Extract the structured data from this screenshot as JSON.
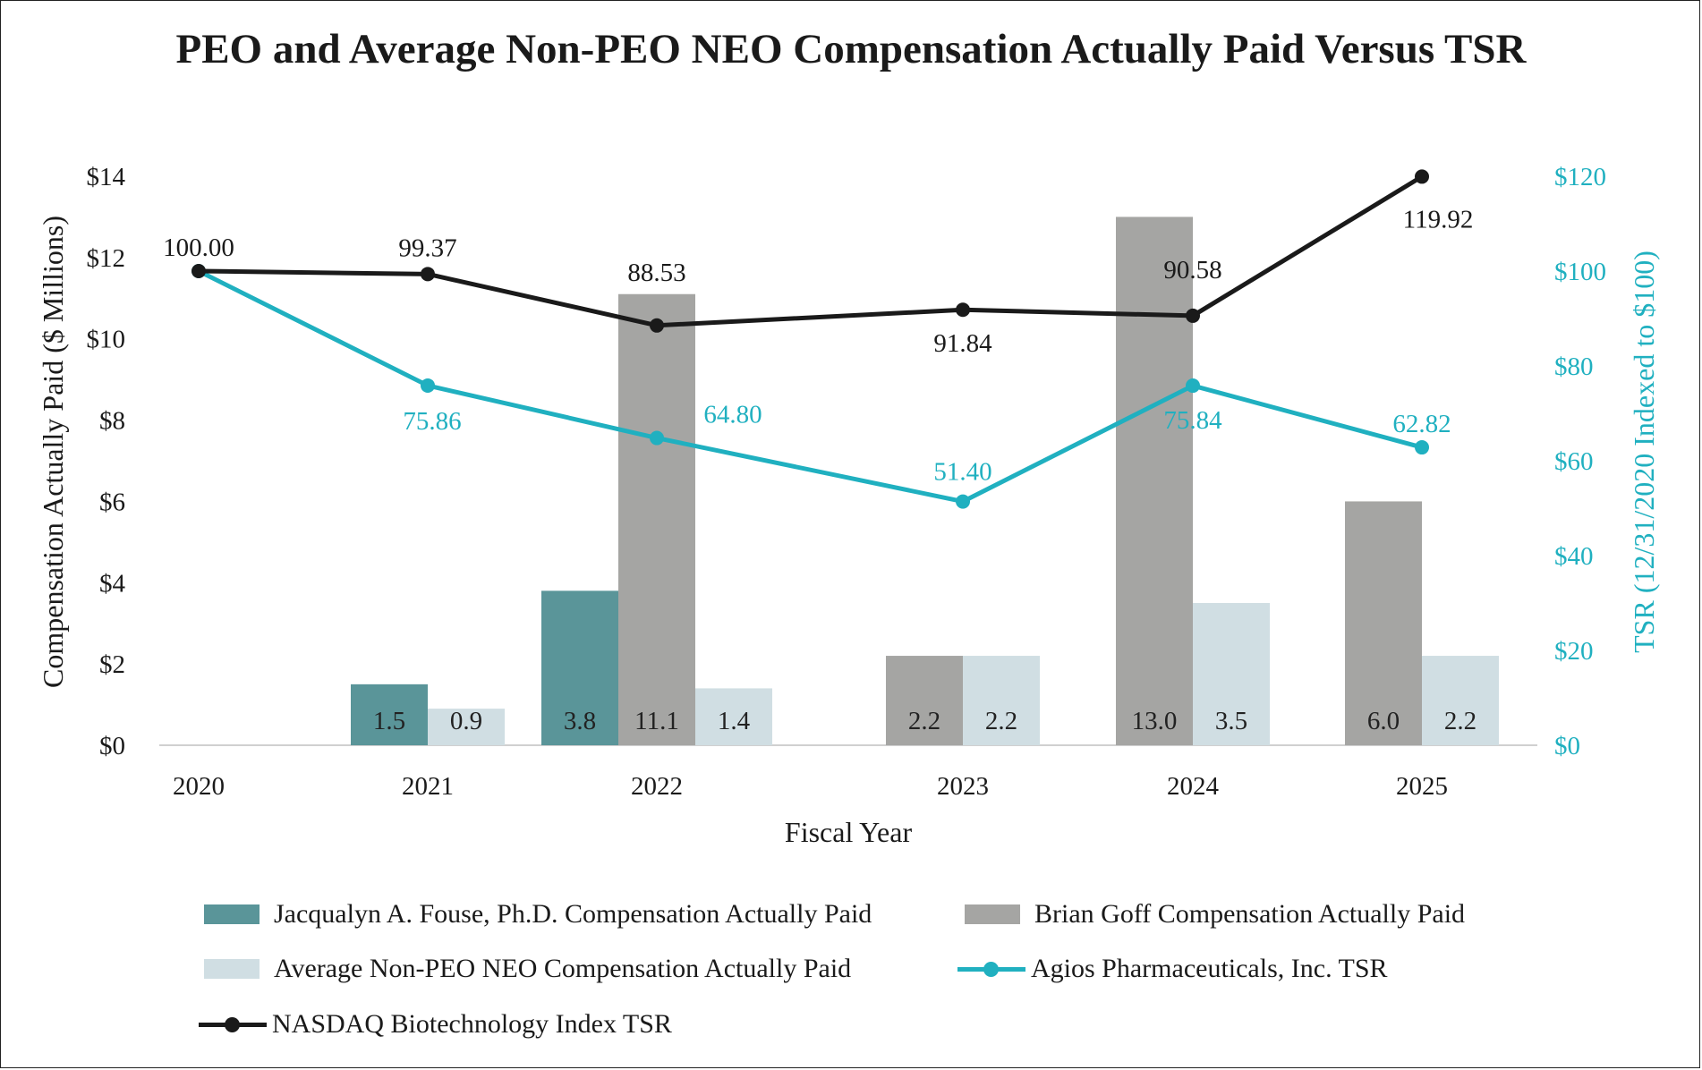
{
  "title": "PEO and Average Non-PEO NEO Compensation Actually Paid Versus TSR",
  "colors": {
    "fouse": "#5a9599",
    "goff": "#a5a5a3",
    "nonpeo": "#d0dee3",
    "agios": "#20b0c0",
    "nasdaq": "#1a1a1a",
    "right_axis": "#20b0c0"
  },
  "legend": {
    "fouse": "Jacqualyn A. Fouse, Ph.D. Compensation Actually Paid",
    "goff": "Brian Goff Compensation Actually Paid",
    "nonpeo": "Average Non-PEO NEO Compensation Actually Paid",
    "agios": "Agios Pharmaceuticals, Inc. TSR",
    "nasdaq": "NASDAQ Biotechnology Index TSR"
  },
  "chart_data": {
    "type": "bar-line-combo",
    "title": "PEO and Average Non-PEO NEO Compensation Actually Paid Versus TSR",
    "xlabel": "Fiscal Year",
    "ylabel": "Compensation Actually Paid ($ Millions)",
    "y2label": "TSR (12/31/2020 Indexed to $100)",
    "categories": [
      "2020",
      "2021",
      "2022",
      "2023",
      "2024",
      "2025"
    ],
    "ylim": [
      0,
      14
    ],
    "y_ticks": [
      0,
      2,
      4,
      6,
      8,
      10,
      12,
      14
    ],
    "y_tick_labels": [
      "$0",
      "$2",
      "$4",
      "$6",
      "$8",
      "$10",
      "$12",
      "$14"
    ],
    "y2lim": [
      0,
      120
    ],
    "y2_ticks": [
      0,
      20,
      40,
      60,
      80,
      100,
      120
    ],
    "y2_tick_labels": [
      "$0",
      "$20",
      "$40",
      "$60",
      "$80",
      "$100",
      "$120"
    ],
    "bar_series": [
      {
        "name": "Jacqualyn A. Fouse, Ph.D. Compensation Actually Paid",
        "key": "fouse",
        "values": [
          null,
          1.5,
          3.8,
          null,
          null,
          null
        ],
        "labels": [
          null,
          "1.5",
          "3.8",
          null,
          null,
          null
        ]
      },
      {
        "name": "Brian Goff Compensation Actually Paid",
        "key": "goff",
        "values": [
          null,
          null,
          11.1,
          2.2,
          13.0,
          6.0
        ],
        "labels": [
          null,
          null,
          "11.1",
          "2.2",
          "13.0",
          "6.0"
        ]
      },
      {
        "name": "Average Non-PEO NEO Compensation Actually Paid",
        "key": "nonpeo",
        "values": [
          null,
          0.9,
          1.4,
          2.2,
          3.5,
          2.2
        ],
        "labels": [
          null,
          "0.9",
          "1.4",
          "2.2",
          "3.5",
          "2.2"
        ]
      }
    ],
    "line_series": [
      {
        "name": "NASDAQ Biotechnology Index TSR",
        "key": "nasdaq",
        "axis": "right",
        "values": [
          100.0,
          99.37,
          88.53,
          91.84,
          90.58,
          119.92
        ],
        "labels": [
          "100.00",
          "99.37",
          "88.53",
          "91.84",
          "90.58",
          "119.92"
        ]
      },
      {
        "name": "Agios Pharmaceuticals, Inc. TSR",
        "key": "agios",
        "axis": "right",
        "values": [
          100.0,
          75.86,
          64.8,
          51.4,
          75.84,
          62.82
        ],
        "labels": [
          null,
          "75.86",
          "64.80",
          "51.40",
          "75.84",
          "62.82"
        ]
      }
    ]
  }
}
